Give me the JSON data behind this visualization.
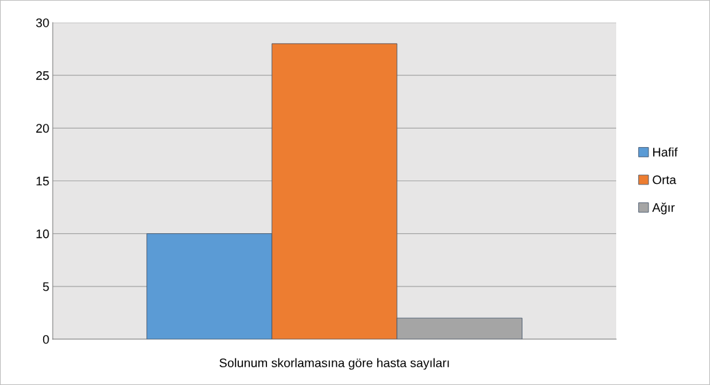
{
  "chart_data": {
    "type": "bar",
    "categories": [
      "Solunum skorlamasına göre hasta sayıları"
    ],
    "series": [
      {
        "name": "Hafif",
        "color": "#5b9bd5",
        "values": [
          10
        ]
      },
      {
        "name": "Orta",
        "color": "#ed7d31",
        "values": [
          28
        ]
      },
      {
        "name": "Ağır",
        "color": "#a5a5a5",
        "values": [
          2
        ]
      }
    ],
    "ylim": [
      0,
      30
    ],
    "yticks": [
      0,
      5,
      10,
      15,
      20,
      25,
      30
    ],
    "grid": "y",
    "legend": "right"
  }
}
